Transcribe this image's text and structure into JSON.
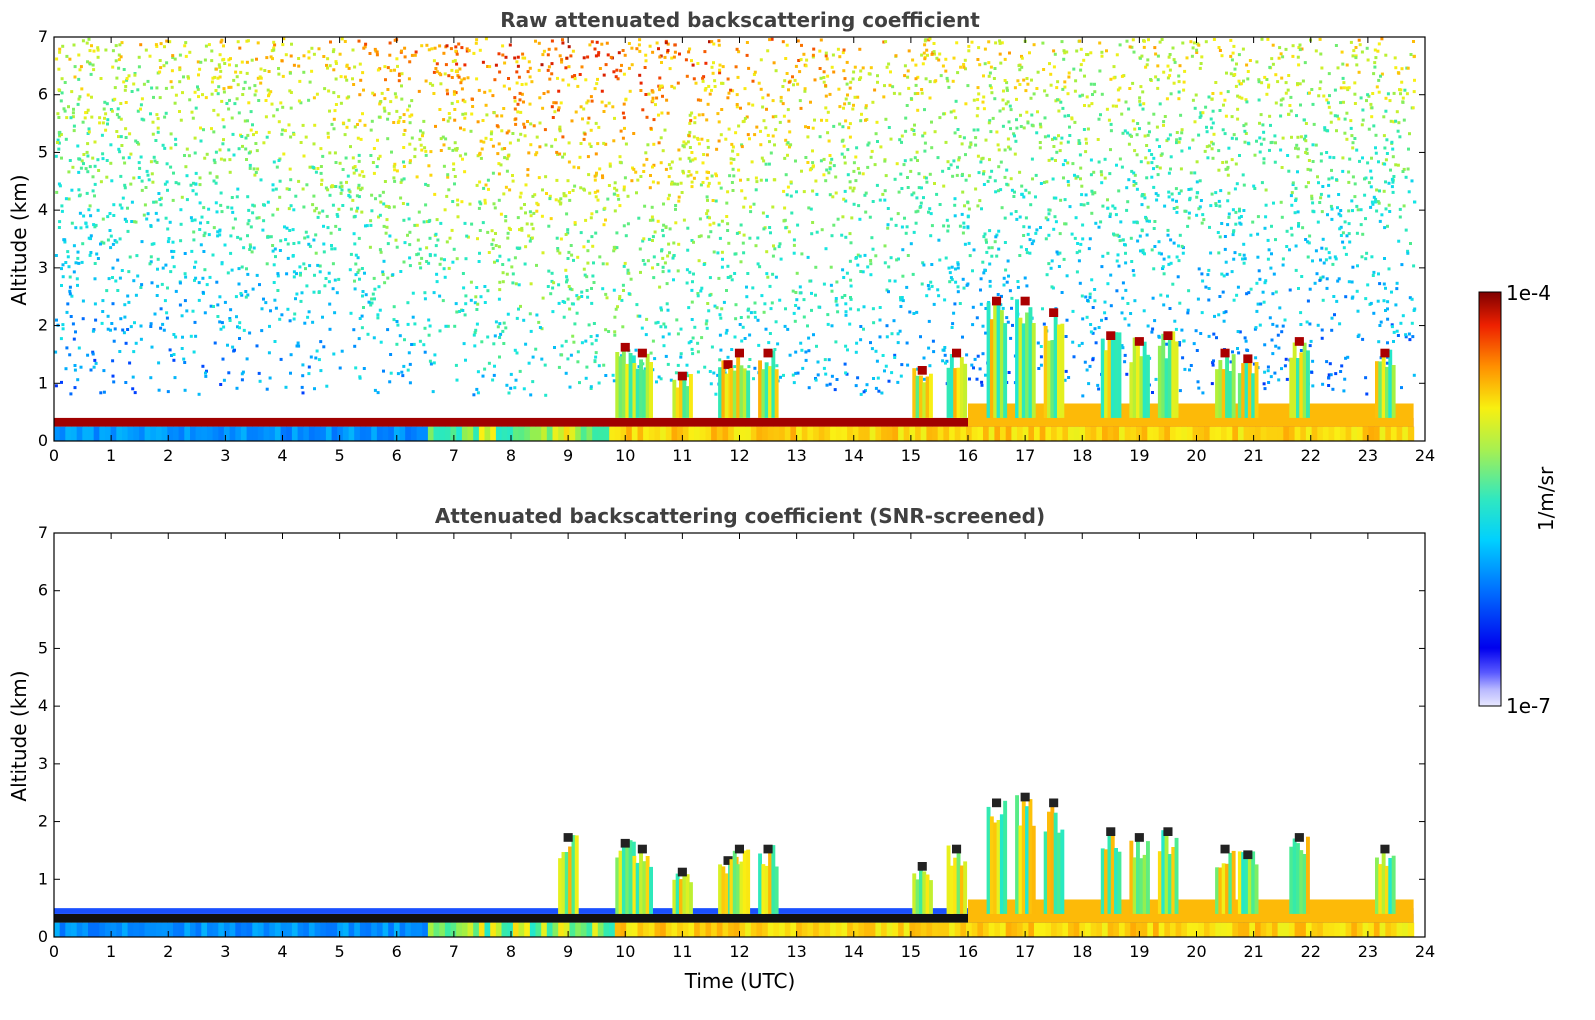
{
  "chart_data": [
    {
      "type": "heatmap",
      "title": "Raw attenuated backscattering coefficient",
      "xlabel": "",
      "ylabel": "Altitude (km)",
      "xlim": [
        0,
        24
      ],
      "ylim": [
        0,
        7
      ],
      "xticks": [
        "0",
        "1",
        "2",
        "3",
        "4",
        "5",
        "6",
        "7",
        "8",
        "9",
        "10",
        "11",
        "12",
        "13",
        "14",
        "15",
        "16",
        "17",
        "18",
        "19",
        "20",
        "21",
        "22",
        "23",
        "24"
      ],
      "yticks": [
        "0",
        "1",
        "2",
        "3",
        "4",
        "5",
        "6",
        "7"
      ],
      "data_extent_hours": [
        0,
        23.8
      ],
      "features": {
        "boundary_layer_top_km": 0.4,
        "near_surface_band_km": [
          0,
          0.25
        ],
        "noise_increasing_with_altitude": true,
        "cloud_columns": [
          {
            "x": 10.0,
            "top": 1.7
          },
          {
            "x": 10.3,
            "top": 1.6
          },
          {
            "x": 11.0,
            "top": 1.2
          },
          {
            "x": 11.8,
            "top": 1.4
          },
          {
            "x": 12.0,
            "top": 1.6
          },
          {
            "x": 12.5,
            "top": 1.6
          },
          {
            "x": 15.2,
            "top": 1.3
          },
          {
            "x": 15.8,
            "top": 1.6
          },
          {
            "x": 16.5,
            "top": 2.5
          },
          {
            "x": 17.0,
            "top": 2.5
          },
          {
            "x": 17.5,
            "top": 2.3
          },
          {
            "x": 18.5,
            "top": 1.9
          },
          {
            "x": 19.0,
            "top": 1.8
          },
          {
            "x": 19.5,
            "top": 1.9
          },
          {
            "x": 20.5,
            "top": 1.6
          },
          {
            "x": 20.9,
            "top": 1.5
          },
          {
            "x": 21.8,
            "top": 1.8
          },
          {
            "x": 23.3,
            "top": 1.6
          }
        ]
      }
    },
    {
      "type": "heatmap",
      "title": "Attenuated backscattering coefficient (SNR-screened)",
      "xlabel": "Time (UTC)",
      "ylabel": "Altitude (km)",
      "xlim": [
        0,
        24
      ],
      "ylim": [
        0,
        7
      ],
      "xticks": [
        "0",
        "1",
        "2",
        "3",
        "4",
        "5",
        "6",
        "7",
        "8",
        "9",
        "10",
        "11",
        "12",
        "13",
        "14",
        "15",
        "16",
        "17",
        "18",
        "19",
        "20",
        "21",
        "22",
        "23",
        "24"
      ],
      "yticks": [
        "0",
        "1",
        "2",
        "3",
        "4",
        "5",
        "6",
        "7"
      ],
      "data_extent_hours": [
        0,
        23.8
      ],
      "features": {
        "boundary_layer_top_km": 0.4,
        "near_surface_band_km": [
          0,
          0.25
        ],
        "noise_increasing_with_altitude": false,
        "cloud_columns": [
          {
            "x": 9.0,
            "top": 1.8
          },
          {
            "x": 10.0,
            "top": 1.7
          },
          {
            "x": 10.3,
            "top": 1.6
          },
          {
            "x": 11.0,
            "top": 1.2
          },
          {
            "x": 11.8,
            "top": 1.4
          },
          {
            "x": 12.0,
            "top": 1.6
          },
          {
            "x": 12.5,
            "top": 1.6
          },
          {
            "x": 15.2,
            "top": 1.3
          },
          {
            "x": 15.8,
            "top": 1.6
          },
          {
            "x": 16.5,
            "top": 2.4
          },
          {
            "x": 17.0,
            "top": 2.5
          },
          {
            "x": 17.5,
            "top": 2.4
          },
          {
            "x": 18.5,
            "top": 1.9
          },
          {
            "x": 19.0,
            "top": 1.8
          },
          {
            "x": 19.5,
            "top": 1.9
          },
          {
            "x": 20.5,
            "top": 1.6
          },
          {
            "x": 20.9,
            "top": 1.5
          },
          {
            "x": 21.8,
            "top": 1.8
          },
          {
            "x": 23.3,
            "top": 1.6
          }
        ]
      }
    }
  ],
  "colorbar": {
    "label": "1/m/sr",
    "max_label": "1e-4",
    "min_label": "1e-7",
    "scale": "log",
    "range": [
      1e-07,
      0.0001
    ],
    "colormap": "jet"
  },
  "colors": {
    "title_text": "#404040",
    "low": "#0000cc",
    "mid": "#33ddaa",
    "high": "#ff4400",
    "max": "#7f0000"
  }
}
